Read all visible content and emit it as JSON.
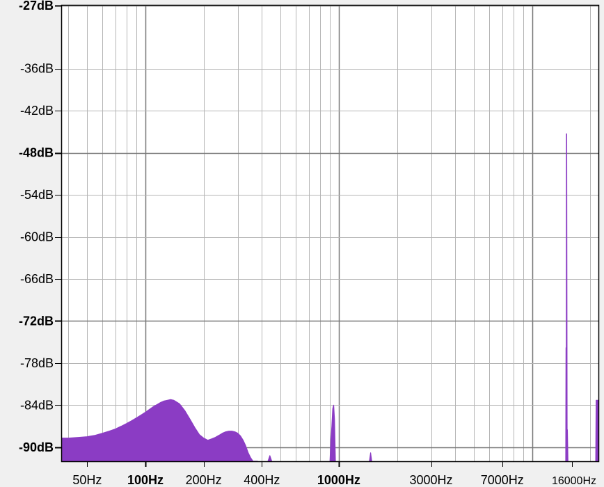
{
  "chart_data": {
    "type": "area",
    "title": "",
    "xlabel": "",
    "ylabel": "",
    "x_scale": "log",
    "xlim": [
      37,
      22000
    ],
    "ylim": [
      -92,
      -27
    ],
    "grid": true,
    "colors": {
      "fill": "#8b3cc4",
      "plot_bg": "#ffffff",
      "grid": "#b4b4b4",
      "grid_major": "#787878",
      "frame": "#000000",
      "page_bg": "#f0f0f0"
    },
    "y_ticks": [
      {
        "value": -27,
        "label": "-27dB",
        "bold": true
      },
      {
        "value": -36,
        "label": "-36dB",
        "bold": false
      },
      {
        "value": -42,
        "label": "-42dB",
        "bold": false
      },
      {
        "value": -48,
        "label": "-48dB",
        "bold": true
      },
      {
        "value": -54,
        "label": "-54dB",
        "bold": false
      },
      {
        "value": -60,
        "label": "-60dB",
        "bold": false
      },
      {
        "value": -66,
        "label": "-66dB",
        "bold": false
      },
      {
        "value": -72,
        "label": "-72dB",
        "bold": true
      },
      {
        "value": -78,
        "label": "-78dB",
        "bold": false
      },
      {
        "value": -84,
        "label": "-84dB",
        "bold": false
      },
      {
        "value": -90,
        "label": "-90dB",
        "bold": true
      }
    ],
    "x_ticks": [
      {
        "value": 50,
        "label": "50Hz",
        "bold": false
      },
      {
        "value": 100,
        "label": "100Hz",
        "bold": true
      },
      {
        "value": 200,
        "label": "200Hz",
        "bold": false
      },
      {
        "value": 400,
        "label": "400Hz",
        "bold": false
      },
      {
        "value": 1000,
        "label": "1000Hz",
        "bold": true
      },
      {
        "value": 3000,
        "label": "3000Hz",
        "bold": false
      },
      {
        "value": 7000,
        "label": "7000Hz",
        "bold": false
      },
      {
        "value": 16000,
        "label": "16000Hz",
        "bold": false
      }
    ],
    "series": [
      {
        "x": [
          37,
          40,
          45,
          50,
          55,
          60,
          65,
          70,
          75,
          80,
          85,
          90,
          95,
          100,
          105,
          110,
          115,
          120,
          125,
          130,
          135,
          140,
          150,
          160,
          170,
          180,
          190,
          200,
          210,
          220,
          230,
          240,
          250,
          260,
          270,
          280,
          290,
          300,
          310,
          320,
          330,
          340,
          350,
          360,
          370,
          380
        ],
        "y": [
          -88.7,
          -88.7,
          -88.6,
          -88.5,
          -88.3,
          -88.0,
          -87.7,
          -87.4,
          -87.0,
          -86.6,
          -86.2,
          -85.8,
          -85.4,
          -85.0,
          -84.6,
          -84.2,
          -83.9,
          -83.6,
          -83.4,
          -83.3,
          -83.2,
          -83.3,
          -83.8,
          -84.8,
          -86.0,
          -87.2,
          -88.2,
          -88.7,
          -89.0,
          -88.8,
          -88.6,
          -88.3,
          -88.0,
          -87.8,
          -87.7,
          -87.7,
          -87.8,
          -88.0,
          -88.4,
          -89.0,
          -89.8,
          -90.8,
          -91.5,
          -92.0,
          -92.0,
          -92.0
        ]
      },
      {
        "x": [
          430,
          440,
          450
        ],
        "y": [
          -92.0,
          -91.2,
          -92.0
        ]
      },
      {
        "x": [
          900,
          910,
          920,
          930,
          940,
          950,
          960
        ],
        "y": [
          -92.0,
          -89.0,
          -87.0,
          -84.5,
          -84.0,
          -86.0,
          -92.0
        ]
      },
      {
        "x": [
          1440,
          1460,
          1480
        ],
        "y": [
          -92.0,
          -90.8,
          -92.0
        ]
      },
      {
        "x": [
          14900,
          14950,
          15000,
          15030,
          15080,
          15150,
          15200,
          15300,
          15330
        ],
        "y": [
          -92.0,
          -75.8,
          -75.8,
          -45.3,
          -45.3,
          -87.5,
          -87.5,
          -92.0,
          -92.0
        ]
      },
      {
        "x": [
          21300,
          21400,
          22000
        ],
        "y": [
          -92.0,
          -83.3,
          -83.3
        ]
      }
    ]
  }
}
